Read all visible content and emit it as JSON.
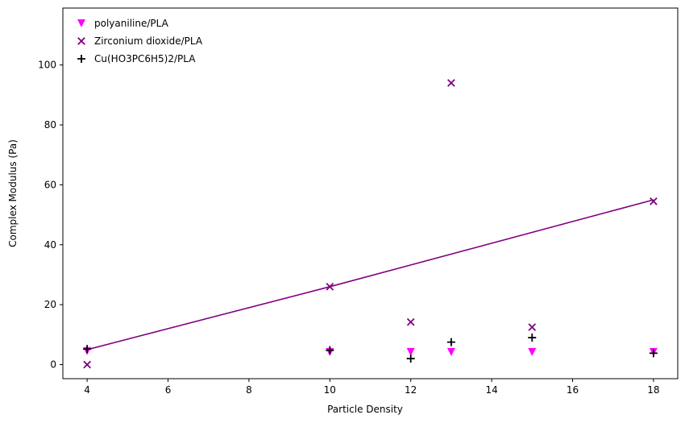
{
  "chart_data": {
    "type": "scatter",
    "title": "",
    "xlabel": "Particle Density",
    "ylabel": "Complex Modulus (Pa)",
    "xlim": [
      3.4,
      18.6
    ],
    "ylim": [
      -4.7,
      119
    ],
    "xticks": [
      4,
      6,
      8,
      10,
      12,
      14,
      16,
      18
    ],
    "yticks": [
      0,
      20,
      40,
      60,
      80,
      100
    ],
    "grid": false,
    "legend_position": "top-left",
    "series": [
      {
        "name": "polyaniline/PLA",
        "marker": "triangle-down",
        "color": "#ff00ff",
        "x": [
          4,
          10,
          12,
          13,
          15,
          18
        ],
        "y": [
          4.5,
          4.2,
          4.2,
          4.2,
          4.2,
          4.2
        ]
      },
      {
        "name": "Zirconium dioxide/PLA",
        "marker": "x",
        "color": "#800080",
        "x": [
          4,
          10,
          12,
          13,
          15,
          18
        ],
        "y": [
          0,
          26,
          14.2,
          94,
          12.5,
          54.5
        ]
      },
      {
        "name": "Cu(HO3PC6H5)2/PLA",
        "marker": "plus",
        "color": "#000000",
        "x": [
          4,
          10,
          12,
          13,
          15,
          18
        ],
        "y": [
          5.2,
          4.8,
          2,
          7.5,
          9,
          3.8
        ]
      }
    ],
    "lines": [
      {
        "color": "#800080",
        "x": [
          4,
          10,
          18
        ],
        "y": [
          5,
          26,
          55
        ]
      }
    ]
  }
}
